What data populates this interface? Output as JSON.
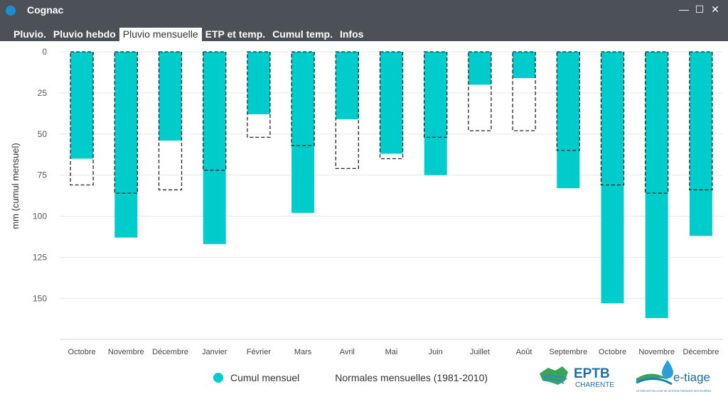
{
  "window": {
    "title": "Cognac",
    "icon": "circle-icon",
    "controls": [
      "minimize",
      "maximize",
      "close"
    ]
  },
  "tabs": [
    {
      "label": "Pluvio."
    },
    {
      "label": "Pluvio hebdo"
    },
    {
      "label": "Pluvio mensuelle",
      "active": true
    },
    {
      "label": "ETP et temp."
    },
    {
      "label": "Cumul temp."
    },
    {
      "label": "Infos"
    }
  ],
  "logos": {
    "eptb": "EPTB",
    "eptb_sub": "CHARENTE",
    "etiage": "e-tiage",
    "etiage_tagline": "LE SERVICE EN LIGNE DE GESTION PARTAGÉE DES RIVIÈRES"
  },
  "colors": {
    "bar": "#00cccc",
    "header": "#4b5157",
    "accent": "#1a8fd0"
  },
  "chart_data": {
    "type": "bar",
    "title": "",
    "xlabel": "",
    "ylabel": "mm (cumul mensuel)",
    "y_inverted": true,
    "ylim": [
      0,
      175
    ],
    "yticks": [
      0,
      25,
      50,
      75,
      100,
      125,
      150
    ],
    "grid": true,
    "categories": [
      "Octobre",
      "Novembre",
      "Décembre",
      "Janvier",
      "Février",
      "Mars",
      "Avril",
      "Mai",
      "Juin",
      "Juillet",
      "Août",
      "Septembre",
      "Octobre",
      "Novembre",
      "Décembre"
    ],
    "series": [
      {
        "name": "Cumul mensuel",
        "style": "filled",
        "values": [
          65,
          113,
          54,
          117,
          38,
          98,
          41,
          62,
          75,
          20,
          16,
          83,
          153,
          162,
          112
        ]
      },
      {
        "name": "Normales mensuelles (1981-2010)",
        "style": "dashed-outline",
        "values": [
          81,
          86,
          84,
          72,
          52,
          57,
          71,
          65,
          52,
          48,
          48,
          60,
          81,
          86,
          84
        ]
      }
    ],
    "legend_position": "bottom"
  }
}
